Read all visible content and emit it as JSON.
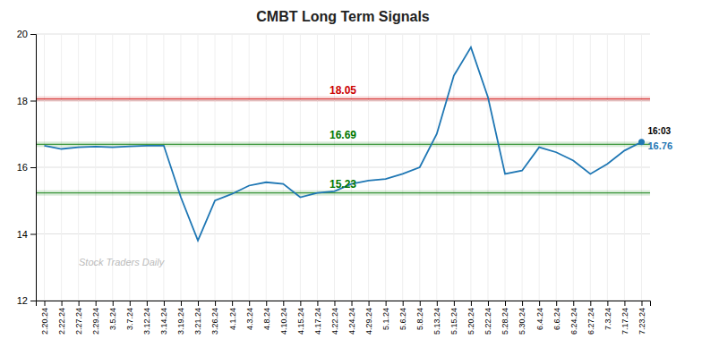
{
  "chart_data": {
    "type": "line",
    "title": "CMBT Long Term Signals",
    "categories": [
      "2.20.24",
      "2.22.24",
      "2.27.24",
      "2.29.24",
      "3.5.24",
      "3.7.24",
      "3.12.24",
      "3.14.24",
      "3.19.24",
      "3.21.24",
      "3.26.24",
      "4.1.24",
      "4.3.24",
      "4.8.24",
      "4.10.24",
      "4.15.24",
      "4.17.24",
      "4.22.24",
      "4.24.24",
      "4.29.24",
      "5.1.24",
      "5.6.24",
      "5.8.24",
      "5.13.24",
      "5.15.24",
      "5.20.24",
      "5.22.24",
      "5.28.24",
      "5.30.24",
      "6.4.24",
      "6.6.24",
      "6.24.24",
      "6.27.24",
      "7.3.24",
      "7.17.24",
      "7.23.24"
    ],
    "values": [
      16.65,
      16.55,
      16.6,
      16.62,
      16.6,
      16.63,
      16.65,
      16.65,
      15.1,
      13.8,
      15.0,
      15.2,
      15.45,
      15.55,
      15.5,
      15.1,
      15.23,
      15.28,
      15.5,
      15.6,
      15.65,
      15.8,
      16.0,
      17.0,
      18.75,
      19.6,
      18.1,
      15.8,
      15.9,
      16.6,
      16.45,
      16.2,
      15.8,
      16.1,
      16.5,
      16.76
    ],
    "ylim": [
      12,
      20
    ],
    "yticks": [
      12,
      14,
      16,
      18,
      20
    ],
    "grid": true,
    "reference_lines": [
      {
        "value": 18.05,
        "label": "18.05",
        "color": "#cc0000"
      },
      {
        "value": 16.69,
        "label": "16.69",
        "color": "#007700"
      },
      {
        "value": 15.23,
        "label": "15.23",
        "color": "#007700"
      }
    ],
    "annotations": [
      "16:03",
      "16.76"
    ],
    "watermark": "Stock Traders Daily"
  }
}
